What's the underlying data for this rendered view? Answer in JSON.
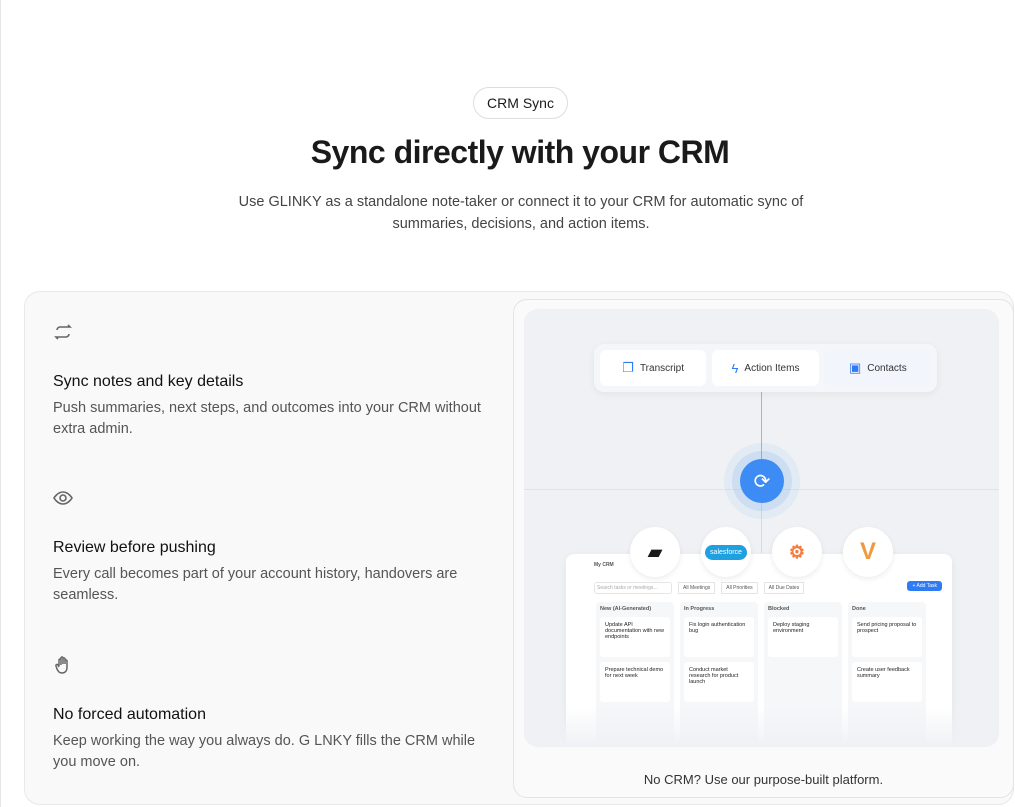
{
  "badge": "CRM Sync",
  "title": "Sync directly with your CRM",
  "subtitle": "Use GLINKY as a standalone note-taker or connect it to your CRM for automatic sync of summaries, decisions, and action items.",
  "features": [
    {
      "icon": "sync-icon",
      "title": "Sync notes and key details",
      "text": "Push summaries, next steps, and outcomes into your CRM without extra admin."
    },
    {
      "icon": "eye-icon",
      "title": "Review before pushing",
      "text": "Every call becomes part of your account history, handovers are seamless."
    },
    {
      "icon": "hand-icon",
      "title": "No forced automation",
      "text": "Keep working the way you always do. G LNKY fills the CRM while you move on."
    }
  ],
  "illustration": {
    "tabs": [
      "Transcript",
      "Action Items",
      "Contacts"
    ],
    "logos": [
      "attio",
      "salesforce",
      "hubspot",
      "veeva"
    ],
    "board": {
      "title": "My CRM",
      "search_placeholder": "Search tasks or meetings...",
      "filters": [
        "All Meetings",
        "All Priorities",
        "All Due Dates"
      ],
      "add_button": "+ Add Task",
      "columns": [
        {
          "name": "New (AI-Generated)",
          "cards": [
            "Update API documentation with new endpoints",
            "Prepare technical demo for next week"
          ]
        },
        {
          "name": "In Progress",
          "cards": [
            "Fix login authentication bug",
            "Conduct market research for product launch"
          ]
        },
        {
          "name": "Blocked",
          "cards": [
            "Deploy staging environment"
          ]
        },
        {
          "name": "Done",
          "cards": [
            "Send pricing proposal to prospect",
            "Create user feedback summary"
          ]
        }
      ]
    }
  },
  "caption": "No CRM? Use our purpose-built platform.",
  "colors": {
    "accent": "#3d8bf5",
    "background": "#f9f9f9"
  }
}
